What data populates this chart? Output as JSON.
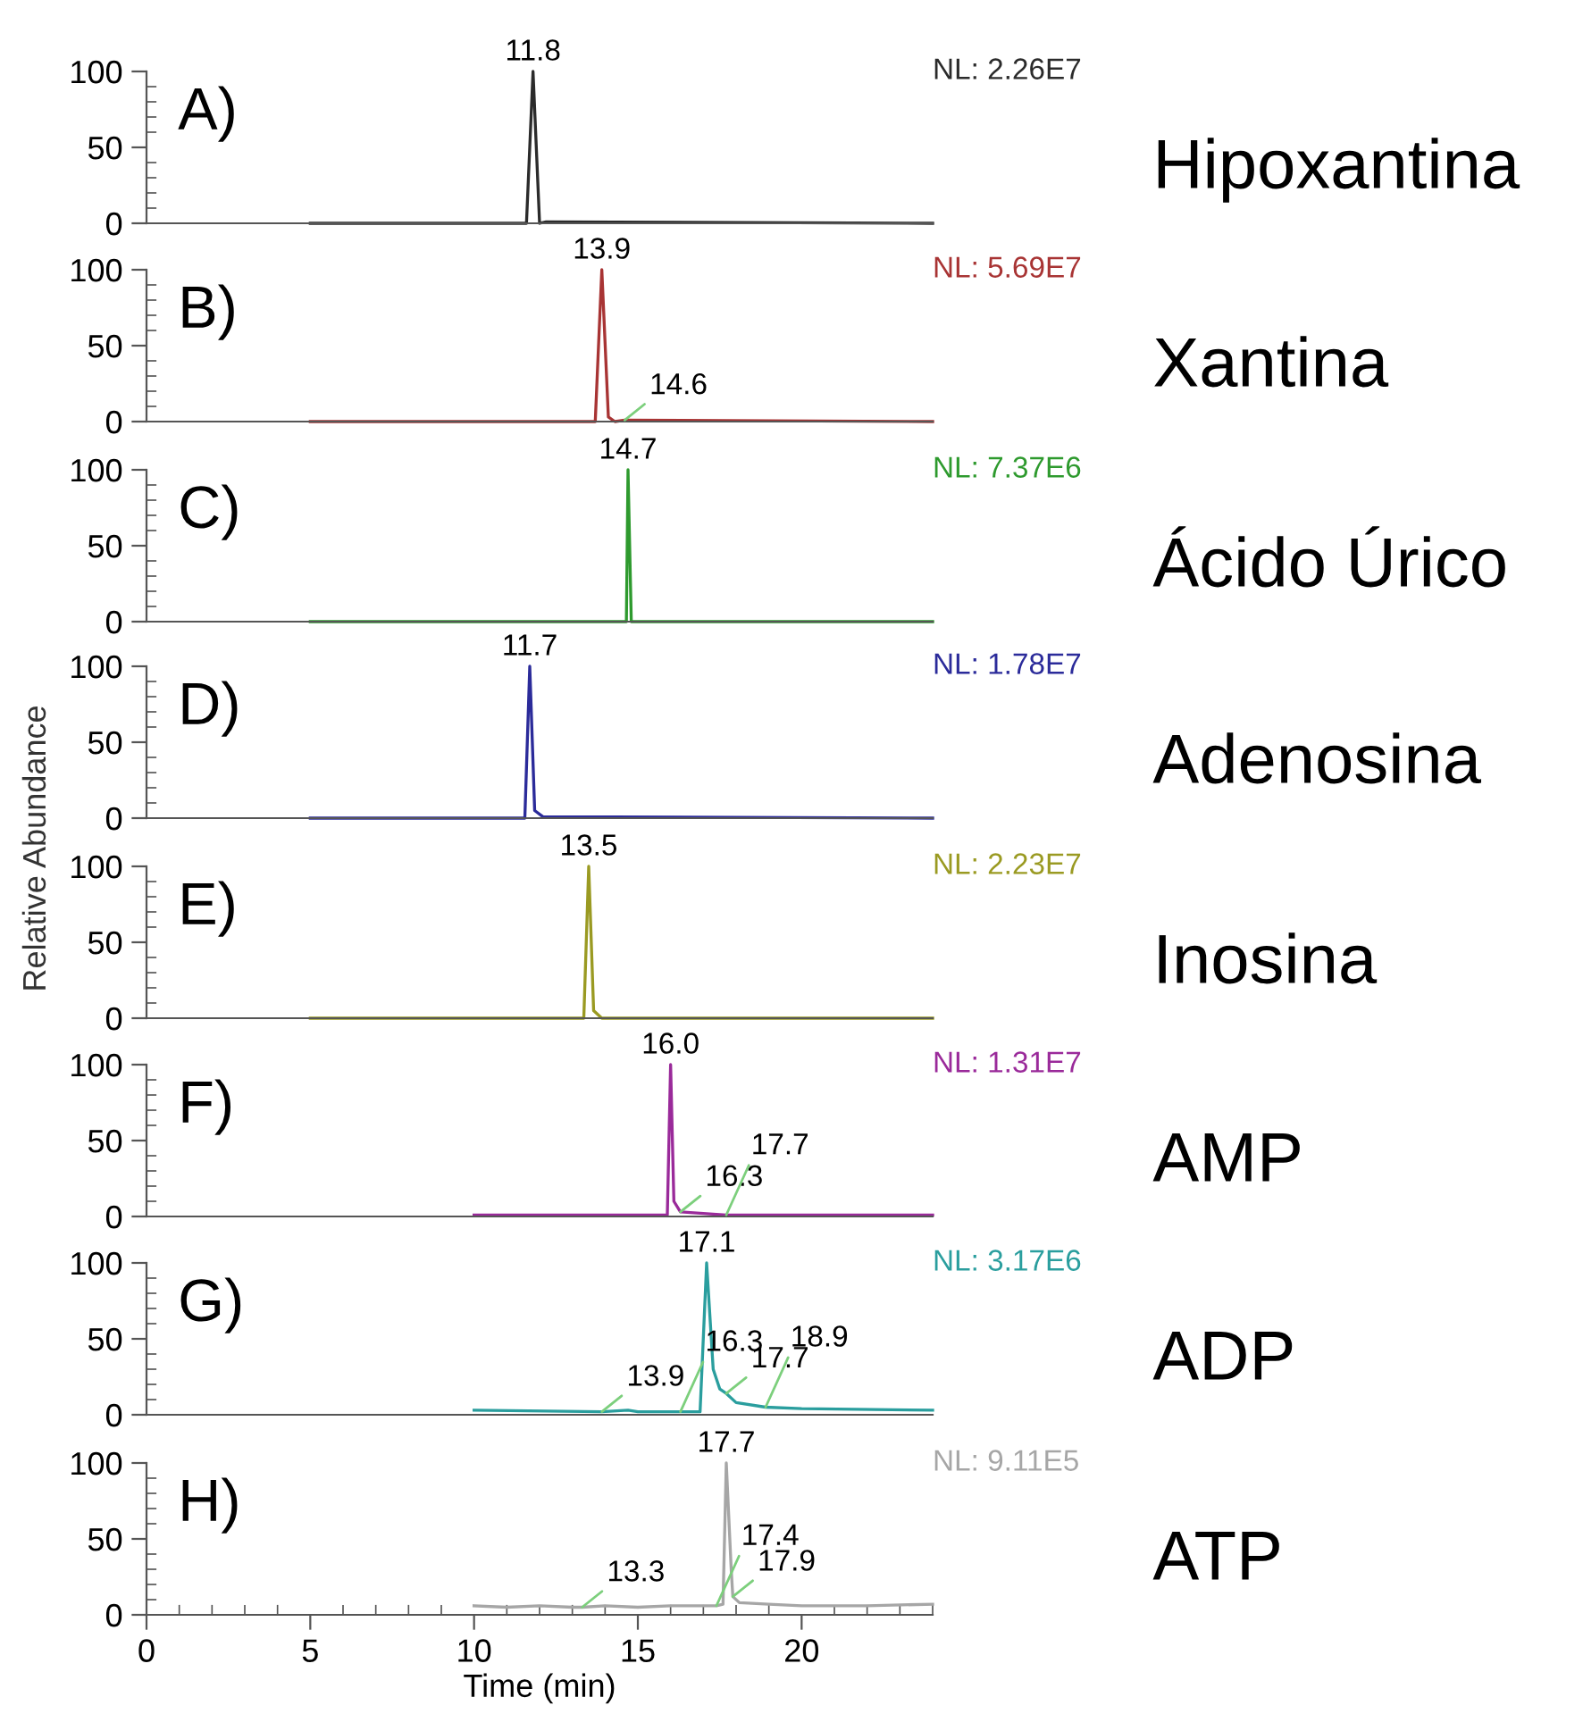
{
  "chart_data": [
    {
      "type": "line",
      "x": [
        5,
        11.6,
        11.8,
        12.0,
        12.2,
        24
      ],
      "series": [
        {
          "color": "#2b2b2b",
          "values": [
            0,
            0,
            100,
            0,
            1,
            0
          ]
        }
      ],
      "xlim": [
        0,
        24
      ],
      "ylim": [
        0,
        100
      ],
      "yticks": [
        0,
        50,
        100
      ],
      "tick_labels": "y",
      "grid": false,
      "legend": false,
      "annotations": [
        "A)",
        "NL: 2.26E7",
        "Hipoxantina",
        {
          "text": "11.8",
          "x": 11.8,
          "y": 100
        }
      ]
    },
    {
      "type": "line",
      "x": [
        5,
        13.7,
        13.9,
        14.1,
        14.3,
        14.6,
        24
      ],
      "series": [
        {
          "color": "#a83434",
          "values": [
            0,
            0,
            100,
            3,
            0,
            1,
            0
          ]
        }
      ],
      "xlim": [
        0,
        24
      ],
      "ylim": [
        0,
        100
      ],
      "yticks": [
        0,
        50,
        100
      ],
      "tick_labels": "y",
      "grid": false,
      "legend": false,
      "annotations": [
        "B)",
        "NL: 5.69E7",
        "Xantina",
        {
          "text": "13.9",
          "x": 13.9,
          "y": 100
        },
        {
          "text": "14.6",
          "x": 14.6,
          "y": 1
        }
      ]
    },
    {
      "type": "line",
      "x": [
        5,
        14.65,
        14.7,
        14.8,
        24
      ],
      "series": [
        {
          "color": "#2e9a2e",
          "values": [
            0,
            0,
            100,
            0,
            0
          ]
        }
      ],
      "xlim": [
        0,
        24
      ],
      "ylim": [
        0,
        100
      ],
      "yticks": [
        0,
        50,
        100
      ],
      "tick_labels": "y",
      "grid": false,
      "legend": false,
      "annotations": [
        "C)",
        "NL: 7.37E6",
        "Ácido Úrico",
        {
          "text": "14.7",
          "x": 14.7,
          "y": 100
        }
      ]
    },
    {
      "type": "line",
      "x": [
        5,
        11.55,
        11.7,
        11.85,
        12.1,
        24
      ],
      "series": [
        {
          "color": "#2b2b9a",
          "values": [
            0,
            0,
            100,
            5,
            1,
            0
          ]
        }
      ],
      "xlim": [
        0,
        24
      ],
      "ylim": [
        0,
        100
      ],
      "yticks": [
        0,
        50,
        100
      ],
      "tick_labels": "y",
      "ylabel": "Relative Abundance",
      "grid": false,
      "legend": false,
      "annotations": [
        "D)",
        "NL: 1.78E7",
        "Adenosina",
        {
          "text": "11.7",
          "x": 11.7,
          "y": 100
        }
      ]
    },
    {
      "type": "line",
      "x": [
        5,
        13.35,
        13.5,
        13.65,
        13.9,
        24
      ],
      "series": [
        {
          "color": "#9a9a22",
          "values": [
            0,
            0,
            100,
            5,
            0,
            0
          ]
        }
      ],
      "xlim": [
        0,
        24
      ],
      "ylim": [
        0,
        100
      ],
      "yticks": [
        0,
        50,
        100
      ],
      "tick_labels": "y",
      "grid": false,
      "legend": false,
      "annotations": [
        "E)",
        "NL: 2.23E7",
        "Inosina",
        {
          "text": "13.5",
          "x": 13.5,
          "y": 100
        }
      ]
    },
    {
      "type": "line",
      "x": [
        10,
        15.9,
        16.0,
        16.1,
        16.3,
        17.0,
        17.7,
        24
      ],
      "series": [
        {
          "color": "#9a2a9a",
          "values": [
            1,
            1,
            100,
            10,
            3,
            2,
            1,
            1
          ]
        }
      ],
      "xlim": [
        0,
        24
      ],
      "ylim": [
        0,
        100
      ],
      "yticks": [
        0,
        50,
        100
      ],
      "tick_labels": "y",
      "grid": false,
      "legend": false,
      "annotations": [
        "F)",
        "NL: 1.31E7",
        "AMP",
        {
          "text": "16.0",
          "x": 16.0,
          "y": 100
        },
        {
          "text": "16.3",
          "x": 16.3,
          "y": 3
        },
        {
          "text": "17.7",
          "x": 17.7,
          "y": 1
        }
      ]
    },
    {
      "type": "line",
      "x": [
        10,
        13.9,
        14.7,
        15.0,
        16.3,
        16.9,
        17.1,
        17.3,
        17.5,
        17.7,
        18.0,
        18.9,
        20,
        24
      ],
      "series": [
        {
          "color": "#2a9e9e",
          "values": [
            3,
            2,
            3,
            2,
            2,
            2,
            100,
            30,
            17,
            14,
            8,
            5,
            4,
            3
          ]
        }
      ],
      "xlim": [
        0,
        24
      ],
      "ylim": [
        0,
        100
      ],
      "yticks": [
        0,
        50,
        100
      ],
      "tick_labels": "y",
      "grid": false,
      "legend": false,
      "annotations": [
        "G)",
        "NL: 3.17E6",
        "ADP",
        {
          "text": "17.1",
          "x": 17.1,
          "y": 100
        },
        {
          "text": "13.9",
          "x": 13.9,
          "y": 2
        },
        {
          "text": "16.3",
          "x": 16.3,
          "y": 2
        },
        {
          "text": "17.7",
          "x": 17.7,
          "y": 14
        },
        {
          "text": "18.9",
          "x": 18.9,
          "y": 5
        }
      ]
    },
    {
      "type": "line",
      "x": [
        10,
        11,
        12,
        13,
        13.3,
        14,
        15,
        16,
        17,
        17.4,
        17.6,
        17.7,
        17.85,
        17.9,
        18.1,
        19,
        20,
        22,
        24
      ],
      "series": [
        {
          "color": "#a6a6a6",
          "values": [
            6,
            5,
            6,
            5,
            5,
            6,
            5,
            6,
            6,
            6,
            7,
            100,
            30,
            12,
            8,
            7,
            6,
            6,
            7
          ]
        }
      ],
      "xlim": [
        0,
        24
      ],
      "ylim": [
        0,
        100
      ],
      "xticks": [
        0,
        5,
        10,
        15,
        20
      ],
      "yticks": [
        0,
        50,
        100
      ],
      "xlabel": "Time (min)",
      "grid": false,
      "legend": false,
      "annotations": [
        "H)",
        "NL: 9.11E5",
        "ATP",
        {
          "text": "17.7",
          "x": 17.7,
          "y": 100
        },
        {
          "text": "13.3",
          "x": 13.3,
          "y": 5
        },
        {
          "text": "17.4",
          "x": 17.4,
          "y": 6
        },
        {
          "text": "17.9",
          "x": 17.9,
          "y": 12
        }
      ]
    }
  ]
}
